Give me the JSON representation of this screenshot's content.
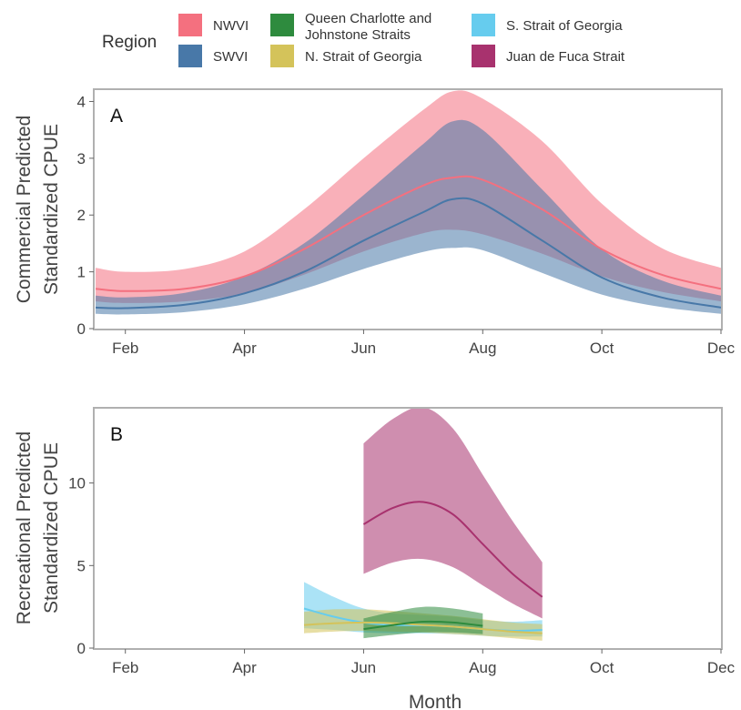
{
  "legend": {
    "title": "Region",
    "items": [
      {
        "key": "nwvi",
        "label": [
          "NWVI"
        ],
        "color": "#F4707F"
      },
      {
        "key": "swvi",
        "label": [
          "SWVI"
        ],
        "color": "#4878A8"
      },
      {
        "key": "qcjs",
        "label": [
          "Queen Charlotte and",
          "Johnstone Straits"
        ],
        "color": "#2E8B3E"
      },
      {
        "key": "nsog",
        "label": [
          "N. Strait of Georgia"
        ],
        "color": "#D4C35A"
      },
      {
        "key": "ssog",
        "label": [
          "S. Strait of Georgia"
        ],
        "color": "#66CCEE"
      },
      {
        "key": "jdf",
        "label": [
          "Juan de Fuca Strait"
        ],
        "color": "#A8326E"
      }
    ]
  },
  "x_axis_title": "Month",
  "chart_data": [
    {
      "panel": "A",
      "type": "area",
      "ylabel": [
        "Commercial Predicted",
        "Standardized CPUE"
      ],
      "xlim": [
        1.5,
        12
      ],
      "ylim": [
        0,
        4.2
      ],
      "x_ticks": [
        2,
        4,
        6,
        8,
        10,
        12
      ],
      "x_tick_labels": [
        "Feb",
        "Apr",
        "Jun",
        "Aug",
        "Oct",
        "Dec"
      ],
      "y_ticks": [
        0,
        1,
        2,
        3,
        4
      ],
      "y_tick_labels": [
        "0",
        "1",
        "2",
        "3",
        "4"
      ],
      "series": [
        {
          "key": "nwvi",
          "x": [
            1.5,
            2,
            3,
            4,
            5,
            6,
            7,
            7.5,
            8,
            9,
            10,
            11,
            12
          ],
          "mean": [
            0.7,
            0.66,
            0.7,
            0.92,
            1.4,
            2.0,
            2.52,
            2.66,
            2.62,
            2.1,
            1.4,
            0.95,
            0.7
          ],
          "lower": [
            0.48,
            0.45,
            0.48,
            0.62,
            0.95,
            1.36,
            1.68,
            1.74,
            1.66,
            1.32,
            0.92,
            0.65,
            0.48
          ],
          "upper": [
            1.07,
            1.0,
            1.05,
            1.36,
            2.1,
            3.0,
            3.85,
            4.18,
            4.05,
            3.3,
            2.2,
            1.42,
            1.07
          ]
        },
        {
          "key": "swvi",
          "x": [
            1.5,
            2,
            3,
            4,
            5,
            6,
            7,
            7.5,
            8,
            9,
            10,
            11,
            12
          ],
          "mean": [
            0.37,
            0.36,
            0.42,
            0.62,
            1.0,
            1.55,
            2.05,
            2.28,
            2.2,
            1.55,
            0.9,
            0.55,
            0.37
          ],
          "lower": [
            0.26,
            0.25,
            0.29,
            0.43,
            0.7,
            1.05,
            1.35,
            1.42,
            1.38,
            0.98,
            0.6,
            0.38,
            0.26
          ],
          "upper": [
            0.58,
            0.55,
            0.63,
            0.92,
            1.5,
            2.35,
            3.25,
            3.65,
            3.5,
            2.45,
            1.4,
            0.85,
            0.58
          ]
        }
      ]
    },
    {
      "panel": "B",
      "type": "area",
      "ylabel": [
        "Recreational Predicted",
        "Standardized CPUE"
      ],
      "xlim": [
        1.5,
        12
      ],
      "ylim": [
        0,
        14.5
      ],
      "x_ticks": [
        2,
        4,
        6,
        8,
        10,
        12
      ],
      "x_tick_labels": [
        "Feb",
        "Apr",
        "Jun",
        "Aug",
        "Oct",
        "Dec"
      ],
      "y_ticks": [
        0,
        5,
        10
      ],
      "y_tick_labels": [
        "0",
        "5",
        "10"
      ],
      "series": [
        {
          "key": "ssog",
          "x": [
            5,
            5.5,
            6,
            6.5,
            7,
            7.5,
            8,
            8.5,
            9
          ],
          "mean": [
            2.4,
            1.9,
            1.55,
            1.4,
            1.38,
            1.3,
            1.15,
            1.05,
            1.1
          ],
          "lower": [
            1.2,
            1.1,
            0.95,
            0.9,
            0.9,
            0.85,
            0.75,
            0.7,
            0.7
          ],
          "upper": [
            4.0,
            3.1,
            2.4,
            2.1,
            2.0,
            1.9,
            1.7,
            1.6,
            1.7
          ]
        },
        {
          "key": "nsog",
          "x": [
            5,
            5.5,
            6,
            6.5,
            7,
            7.5,
            8,
            8.5,
            9
          ],
          "mean": [
            1.4,
            1.5,
            1.55,
            1.5,
            1.4,
            1.3,
            1.15,
            1.0,
            0.9
          ],
          "lower": [
            0.9,
            1.0,
            1.05,
            1.0,
            0.95,
            0.85,
            0.75,
            0.6,
            0.45
          ],
          "upper": [
            2.2,
            2.35,
            2.35,
            2.25,
            2.1,
            1.95,
            1.75,
            1.55,
            1.45
          ]
        },
        {
          "key": "qcjs",
          "x": [
            6,
            6.5,
            7,
            7.5,
            8
          ],
          "mean": [
            1.15,
            1.4,
            1.6,
            1.55,
            1.35
          ],
          "lower": [
            0.6,
            0.8,
            0.95,
            0.95,
            0.85
          ],
          "upper": [
            1.8,
            2.2,
            2.5,
            2.4,
            2.1
          ]
        },
        {
          "key": "jdf",
          "x": [
            6,
            6.5,
            7,
            7.5,
            8,
            8.5,
            9
          ],
          "mean": [
            7.5,
            8.5,
            8.85,
            8.1,
            6.3,
            4.5,
            3.1
          ],
          "lower": [
            4.5,
            5.2,
            5.4,
            4.9,
            3.8,
            2.7,
            1.8
          ],
          "upper": [
            12.4,
            13.9,
            14.6,
            13.3,
            10.5,
            7.7,
            5.2
          ]
        }
      ]
    }
  ]
}
